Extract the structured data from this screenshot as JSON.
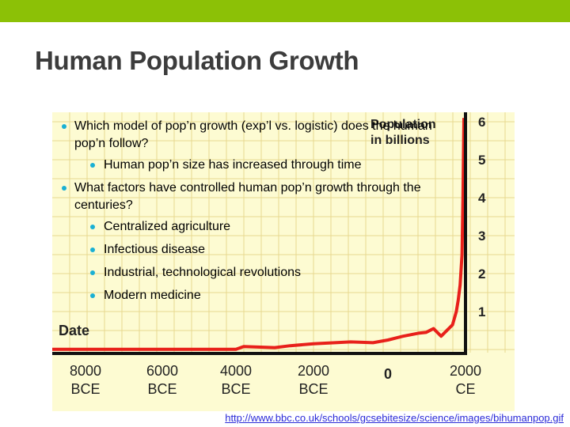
{
  "title": "Human Population Growth",
  "bullets": [
    {
      "text": "Which model of pop’n growth  (exp’l vs. logistic) does the human pop’n follow?"
    },
    {
      "text": "Human pop’n size has increased through time"
    },
    {
      "text": "What factors have controlled human pop’n growth through the centuries?"
    },
    {
      "text": "Centralized agriculture"
    },
    {
      "text": "Infectious disease"
    },
    {
      "text": "Industrial, technological revolutions"
    },
    {
      "text": "Modern medicine"
    }
  ],
  "chart": {
    "legend_line1": "Population",
    "legend_line2": "in billions",
    "x_label": "Date",
    "y_ticks": [
      "1",
      "2",
      "3",
      "4",
      "5",
      "6"
    ],
    "x_ticks": [
      {
        "top": "8000",
        "bottom": "BCE"
      },
      {
        "top": "6000",
        "bottom": "BCE"
      },
      {
        "top": "4000",
        "bottom": "BCE"
      },
      {
        "top": "2000",
        "bottom": "BCE"
      },
      {
        "top": "0",
        "bottom": ""
      },
      {
        "top": "2000",
        "bottom": "CE"
      }
    ],
    "line_color": "#e8201a",
    "background_color": "#fdfbd2"
  },
  "chart_data": {
    "type": "line",
    "xlabel": "Date",
    "ylabel": "Population in billions",
    "x_unit": "year",
    "ylim": [
      0,
      6.5
    ],
    "series": [
      {
        "x": [
          -8000,
          -4000,
          -3800,
          -3000,
          -2600,
          -2000,
          -1000,
          -400,
          0,
          400,
          800,
          1000,
          1200,
          1400,
          1600,
          1700,
          1800,
          1850,
          1900,
          1950,
          1975,
          2000
        ],
        "y": [
          0.005,
          0.007,
          0.08,
          0.05,
          0.1,
          0.15,
          0.2,
          0.18,
          0.25,
          0.35,
          0.43,
          0.45,
          0.55,
          0.35,
          0.55,
          0.65,
          1.0,
          1.3,
          1.7,
          2.5,
          4.0,
          6.1
        ]
      }
    ],
    "grid": true
  },
  "source_link": "http://www.bbc.co.uk/schools/gcsebitesize/science/images/bihumanpop.gif",
  "colors": {
    "top_bar": "#8cc106",
    "title": "#3c3c3c",
    "bullet": "#1ab0d4",
    "link": "#2b2bd8"
  }
}
